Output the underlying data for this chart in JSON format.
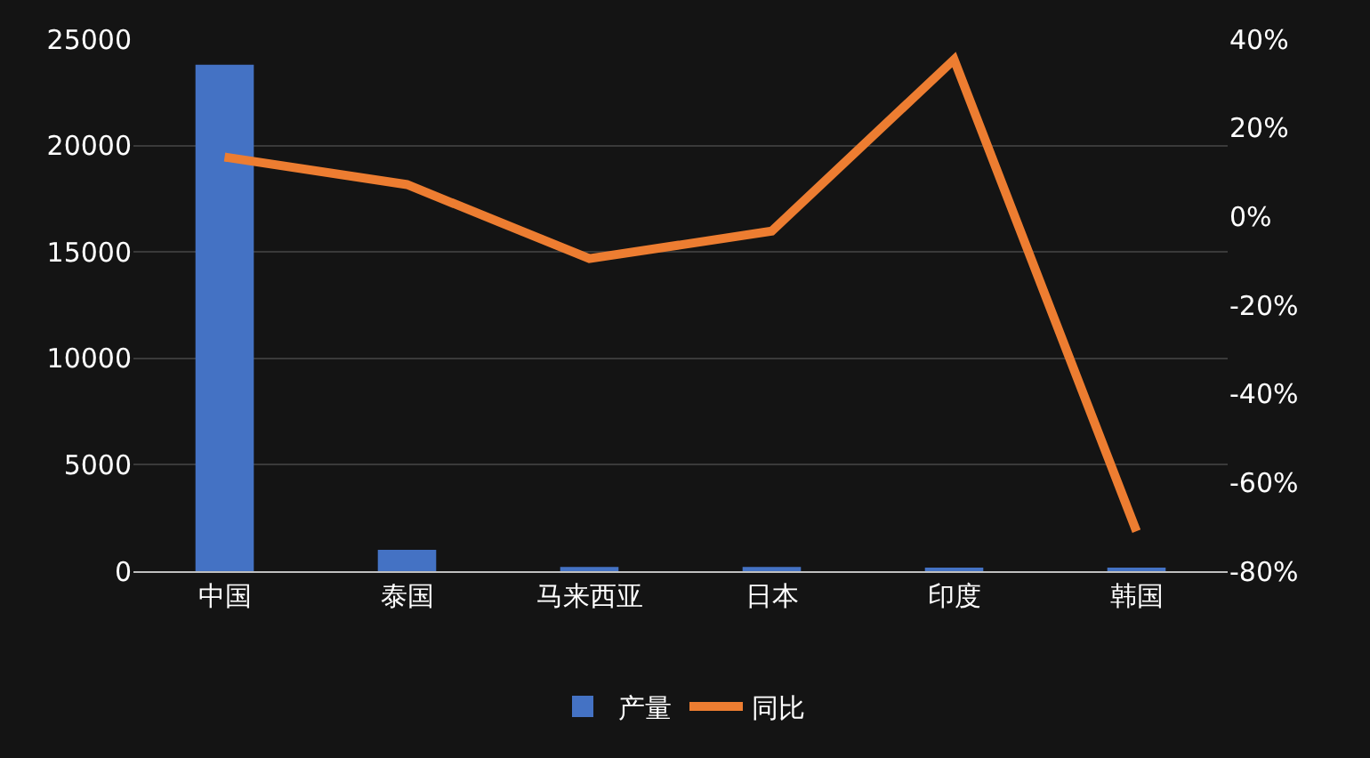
{
  "chart_data": {
    "type": "bar",
    "categories": [
      "中国",
      "泰国",
      "马来西亚",
      "日本",
      "印度",
      "韩国"
    ],
    "series": [
      {
        "name": "产量",
        "color": "#4472c4",
        "values": [
          23800,
          1000,
          200,
          200,
          100,
          100
        ]
      },
      {
        "name": "同比",
        "type": "line",
        "axis": "y2",
        "color": "#ed7d31",
        "values": [
          13.4,
          7.2,
          -9.5,
          -3.3,
          35.4,
          -71
        ]
      }
    ],
    "ylim": [
      0,
      25000
    ],
    "yticks": [
      0,
      5000,
      10000,
      15000,
      20000,
      25000
    ],
    "y2lim": [
      -80,
      40
    ],
    "y2ticks": [
      {
        "value": -80,
        "label": "-80%"
      },
      {
        "value": -60,
        "label": "-60%"
      },
      {
        "value": -40,
        "label": "-40%"
      },
      {
        "value": -20,
        "label": "-20%"
      },
      {
        "value": 0,
        "label": "0%"
      },
      {
        "value": 20,
        "label": "20%"
      },
      {
        "value": 40,
        "label": "40%"
      }
    ],
    "grid": "y",
    "legend": "bottom",
    "marker": "none",
    "line_style": "solid"
  }
}
